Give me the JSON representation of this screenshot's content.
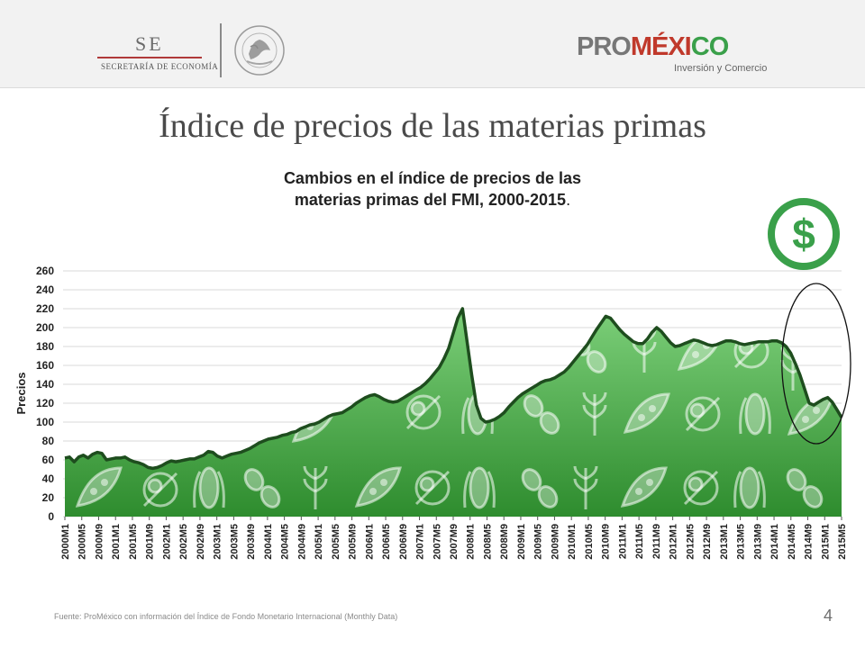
{
  "header": {
    "se_logo_text": "SE",
    "se_logo_subtext": "SECRETARÍA DE ECONOMÍA",
    "seal_text": "ESTADOS UNIDOS MEXICANOS",
    "promexico_logo": {
      "pro": "PRO",
      "mex": "MÉXI",
      "co": "CO"
    },
    "promexico_tagline": "Inversión y Comercio"
  },
  "slide": {
    "title": "Índice de precios de las materias primas",
    "subtitle_line1": "Cambios en el índice de precios de las",
    "subtitle_line2": "materias primas del FMI, 2000-2015",
    "subtitle_period": ".",
    "footer": "Fuente: ProMéxico con información del Índice de Fondo Monetario Internacional (Monthly Data)",
    "page_number": "4"
  },
  "colors": {
    "area_top": "#79c978",
    "area_bottom": "#2f8f2f",
    "line": "#1e4d1e",
    "dollar": "#3aa04a"
  },
  "chart_data": {
    "type": "area",
    "title": "",
    "xlabel": "",
    "ylabel": "Precios",
    "ylim": [
      0,
      260
    ],
    "yticks": [
      0,
      20,
      40,
      60,
      80,
      100,
      120,
      140,
      160,
      180,
      200,
      220,
      240,
      260
    ],
    "grid": true,
    "tick_labels": [
      "2000M1",
      "2000M5",
      "2000M9",
      "2001M1",
      "2001M5",
      "2001M9",
      "2002M1",
      "2002M5",
      "2002M9",
      "2003M1",
      "2003M5",
      "2003M9",
      "2004M1",
      "2004M5",
      "2004M9",
      "2005M1",
      "2005M5",
      "2005M9",
      "2006M1",
      "2006M5",
      "2006M9",
      "2007M1",
      "2007M5",
      "2007M9",
      "2008M1",
      "2008M5",
      "2008M9",
      "2009M1",
      "2009M5",
      "2009M9",
      "2010M1",
      "2010M5",
      "2010M9",
      "2011M1",
      "2011M5",
      "2011M9",
      "2012M1",
      "2012M5",
      "2012M9",
      "2013M1",
      "2013M5",
      "2013M9",
      "2014M1",
      "2014M5",
      "2014M9",
      "2015M1",
      "2015M5"
    ],
    "series": [
      {
        "values": [
          62,
          63,
          58,
          63,
          65,
          62,
          66,
          68,
          67,
          60,
          61,
          62,
          62,
          63,
          60,
          58,
          57,
          55,
          52,
          51,
          52,
          54,
          57,
          59,
          58,
          59,
          60,
          61,
          61,
          63,
          65,
          69,
          68,
          64,
          62,
          64,
          66,
          67,
          68,
          70,
          72,
          75,
          78,
          80,
          82,
          83,
          84,
          86,
          87,
          89,
          90,
          93,
          95,
          97,
          98,
          100,
          103,
          106,
          108,
          109,
          110,
          113,
          116,
          120,
          123,
          126,
          128,
          129,
          127,
          124,
          122,
          121,
          122,
          125,
          128,
          131,
          134,
          137,
          141,
          146,
          152,
          158,
          167,
          178,
          194,
          210,
          220,
          185,
          150,
          118,
          104,
          100,
          101,
          103,
          106,
          110,
          116,
          121,
          126,
          130,
          133,
          136,
          139,
          142,
          144,
          145,
          147,
          150,
          153,
          158,
          164,
          170,
          176,
          182,
          190,
          198,
          205,
          212,
          210,
          204,
          198,
          193,
          189,
          185,
          183,
          183,
          188,
          195,
          200,
          196,
          190,
          184,
          180,
          181,
          183,
          185,
          187,
          186,
          184,
          182,
          181,
          182,
          184,
          186,
          186,
          185,
          183,
          182,
          183,
          184,
          185,
          185,
          185,
          186,
          186,
          184,
          180,
          173,
          162,
          150,
          135,
          120,
          118,
          121,
          124,
          126,
          121,
          113,
          105
        ]
      }
    ],
    "annotations": [
      {
        "type": "ellipse",
        "range": [
          "2014M5",
          "2015M5"
        ]
      }
    ]
  }
}
